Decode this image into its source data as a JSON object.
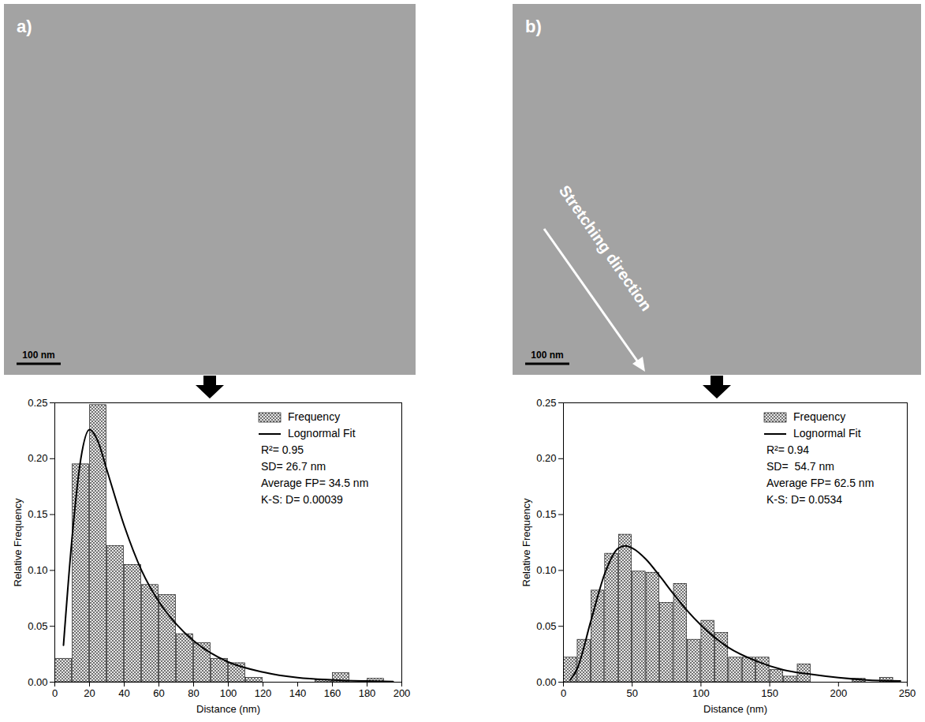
{
  "chart_data": [
    {
      "type": "histogram",
      "panel_label": "a)",
      "image": {
        "scale_bar": "100 nm"
      },
      "xlabel": "Distance (nm)",
      "ylabel": "Relative Frequency",
      "xlim": [
        0,
        200
      ],
      "xticks": [
        0,
        20,
        40,
        60,
        80,
        100,
        120,
        140,
        160,
        180,
        200
      ],
      "ylim": [
        0,
        0.25
      ],
      "yticks": [
        {
          "value": 0,
          "label": "0.00"
        },
        {
          "value": 0.05,
          "label": "0.05"
        },
        {
          "value": 0.1,
          "label": "0.10"
        },
        {
          "value": 0.15,
          "label": "0.15"
        },
        {
          "value": 0.2,
          "label": "0.20"
        },
        {
          "value": 0.25,
          "label": "0.25"
        }
      ],
      "grid": false,
      "legend": "top-right",
      "annotations": [
        "R²= 0.95",
        "SD= 26.7 nm",
        "Average FP= 34.5 nm",
        "K-S: D= 0.00039"
      ],
      "series": [
        {
          "name": "Frequency",
          "type": "bar",
          "color": "#555555",
          "bins": [
            0,
            10,
            20,
            30,
            40,
            50,
            60,
            70,
            80,
            90,
            100,
            110,
            120,
            130,
            140,
            150,
            160,
            170,
            180,
            190
          ],
          "values": [
            0.021,
            0.195,
            0.248,
            0.122,
            0.105,
            0.087,
            0.078,
            0.043,
            0.035,
            0.021,
            0.017,
            0.004,
            0,
            0,
            0,
            0.002,
            0.008,
            0,
            0.003
          ]
        },
        {
          "name": "Lognormal Fit",
          "type": "line",
          "color": "#000000",
          "x": [
            5,
            10,
            15,
            20,
            25,
            30,
            40,
            50,
            60,
            70,
            80,
            90,
            100,
            120,
            140,
            160,
            180,
            195
          ],
          "values": [
            0.033,
            0.13,
            0.2,
            0.226,
            0.215,
            0.19,
            0.14,
            0.1,
            0.072,
            0.052,
            0.037,
            0.026,
            0.018,
            0.009,
            0.004,
            0.002,
            0.001,
            0.0005
          ]
        }
      ]
    },
    {
      "type": "histogram",
      "panel_label": "b)",
      "image": {
        "scale_bar": "100 nm",
        "annotation": "Stretching direction"
      },
      "xlabel": "Distance (nm)",
      "ylabel": "Relative Frequency",
      "xlim": [
        0,
        250
      ],
      "xticks": [
        0,
        50,
        100,
        150,
        200,
        250
      ],
      "ylim": [
        0,
        0.25
      ],
      "yticks": [
        {
          "value": 0,
          "label": "0.00"
        },
        {
          "value": 0.05,
          "label": "0.05"
        },
        {
          "value": 0.1,
          "label": "0.10"
        },
        {
          "value": 0.15,
          "label": "0.15"
        },
        {
          "value": 0.2,
          "label": "0.20"
        },
        {
          "value": 0.25,
          "label": "0.25"
        }
      ],
      "grid": false,
      "legend": "top-right",
      "annotations": [
        "R²= 0.94",
        "SD=  54.7 nm",
        "Average FP= 62.5 nm",
        "K-S: D= 0.0534"
      ],
      "series": [
        {
          "name": "Frequency",
          "type": "bar",
          "color": "#555555",
          "bins": [
            0,
            10,
            20,
            30,
            40,
            50,
            60,
            70,
            80,
            90,
            100,
            110,
            120,
            130,
            140,
            150,
            160,
            170,
            180,
            190,
            200,
            210,
            220,
            230,
            240
          ],
          "values": [
            0.022,
            0.038,
            0.082,
            0.115,
            0.132,
            0.099,
            0.098,
            0.071,
            0.088,
            0.038,
            0.055,
            0.044,
            0.022,
            0.022,
            0.022,
            0.011,
            0.005,
            0.016,
            0,
            0,
            0,
            0.003,
            0,
            0.004
          ]
        },
        {
          "name": "Lognormal Fit",
          "type": "line",
          "color": "#000000",
          "x": [
            5,
            10,
            20,
            30,
            40,
            45,
            50,
            60,
            70,
            80,
            90,
            100,
            120,
            140,
            160,
            180,
            200,
            220,
            245
          ],
          "values": [
            0.002,
            0.012,
            0.055,
            0.097,
            0.12,
            0.122,
            0.12,
            0.11,
            0.095,
            0.079,
            0.064,
            0.051,
            0.031,
            0.019,
            0.011,
            0.007,
            0.004,
            0.002,
            0.001
          ]
        }
      ]
    }
  ]
}
